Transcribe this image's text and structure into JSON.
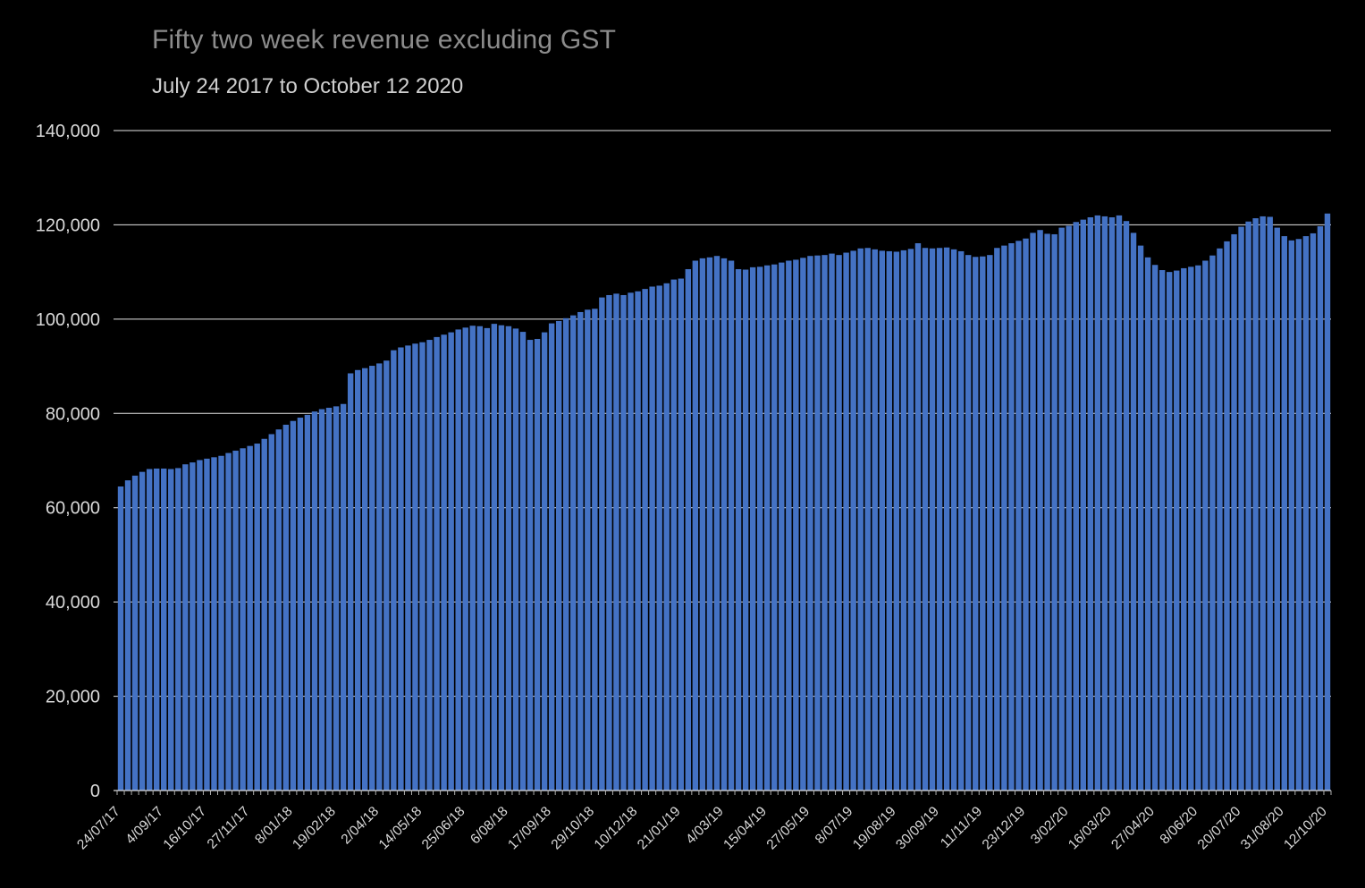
{
  "chart_data": {
    "type": "bar",
    "title": "Fifty two week revenue excluding GST",
    "subtitle": "July 24 2017 to October 12 2020",
    "xlabel": "",
    "ylabel": "",
    "ylim": [
      0,
      140000
    ],
    "y_ticks": [
      0,
      20000,
      40000,
      60000,
      80000,
      100000,
      120000,
      140000
    ],
    "y_tick_labels": [
      "0",
      "20,000",
      "40,000",
      "60,000",
      "80,000",
      "100,000",
      "120,000",
      "140,000"
    ],
    "grid": true,
    "legend": "none",
    "bar_color": "#4472C4",
    "background_color": "#000000",
    "grid_color": "#ffffff",
    "axis_color": "#d9d9d9",
    "text_color": "#d9d9d9",
    "title_color": "#8c8c8c",
    "subtitle_color": "#cfcfcf",
    "x_tick_interval_weeks": 6,
    "x_tick_labels": [
      "24/07/17",
      "4/09/17",
      "16/10/17",
      "27/11/17",
      "8/01/18",
      "19/02/18",
      "2/04/18",
      "14/05/18",
      "25/06/18",
      "6/08/18",
      "17/09/18",
      "29/10/18",
      "10/12/18",
      "21/01/19",
      "4/03/19",
      "15/04/19",
      "27/05/19",
      "8/07/19",
      "19/08/19",
      "30/09/19",
      "11/11/19",
      "23/12/19",
      "3/02/20",
      "16/03/20",
      "27/04/20",
      "8/06/20",
      "20/07/20",
      "31/08/20",
      "12/10/20"
    ],
    "values": [
      64500,
      65800,
      66800,
      67600,
      68200,
      68300,
      68300,
      68200,
      68400,
      69200,
      69600,
      70100,
      70400,
      70700,
      71000,
      71600,
      72100,
      72600,
      73100,
      73600,
      74600,
      75600,
      76600,
      77600,
      78400,
      79100,
      79700,
      80400,
      80900,
      81200,
      81500,
      82000,
      88500,
      89200,
      89600,
      90100,
      90600,
      91200,
      93400,
      94000,
      94400,
      94800,
      95100,
      95600,
      96200,
      96700,
      97200,
      97800,
      98200,
      98600,
      98500,
      98100,
      99000,
      98700,
      98500,
      98000,
      97300,
      95600,
      95800,
      97200,
      99100,
      99600,
      100200,
      100800,
      101500,
      102000,
      102200,
      104600,
      105100,
      105400,
      105100,
      105600,
      105900,
      106400,
      106900,
      107100,
      107600,
      108400,
      108600,
      110600,
      112400,
      112900,
      113100,
      113400,
      112900,
      112400,
      110600,
      110500,
      111000,
      111100,
      111400,
      111600,
      112000,
      112400,
      112600,
      113000,
      113400,
      113500,
      113600,
      113900,
      113600,
      114100,
      114500,
      115000,
      115100,
      114800,
      114500,
      114400,
      114300,
      114600,
      114900,
      116100,
      115100,
      115000,
      115100,
      115200,
      114800,
      114400,
      113600,
      113200,
      113300,
      113600,
      115100,
      115600,
      116100,
      116600,
      117100,
      118300,
      118900,
      118100,
      118000,
      119400,
      119800,
      120600,
      121100,
      121600,
      122000,
      121800,
      121600,
      122000,
      120800,
      118300,
      115600,
      113100,
      111500,
      110400,
      110000,
      110300,
      110800,
      111100,
      111400,
      112400,
      113500,
      115000,
      116500,
      118000,
      119600,
      120700,
      121400,
      121800,
      121700,
      119400,
      117600,
      116700,
      117000,
      117600,
      118200,
      119700,
      122400
    ]
  }
}
